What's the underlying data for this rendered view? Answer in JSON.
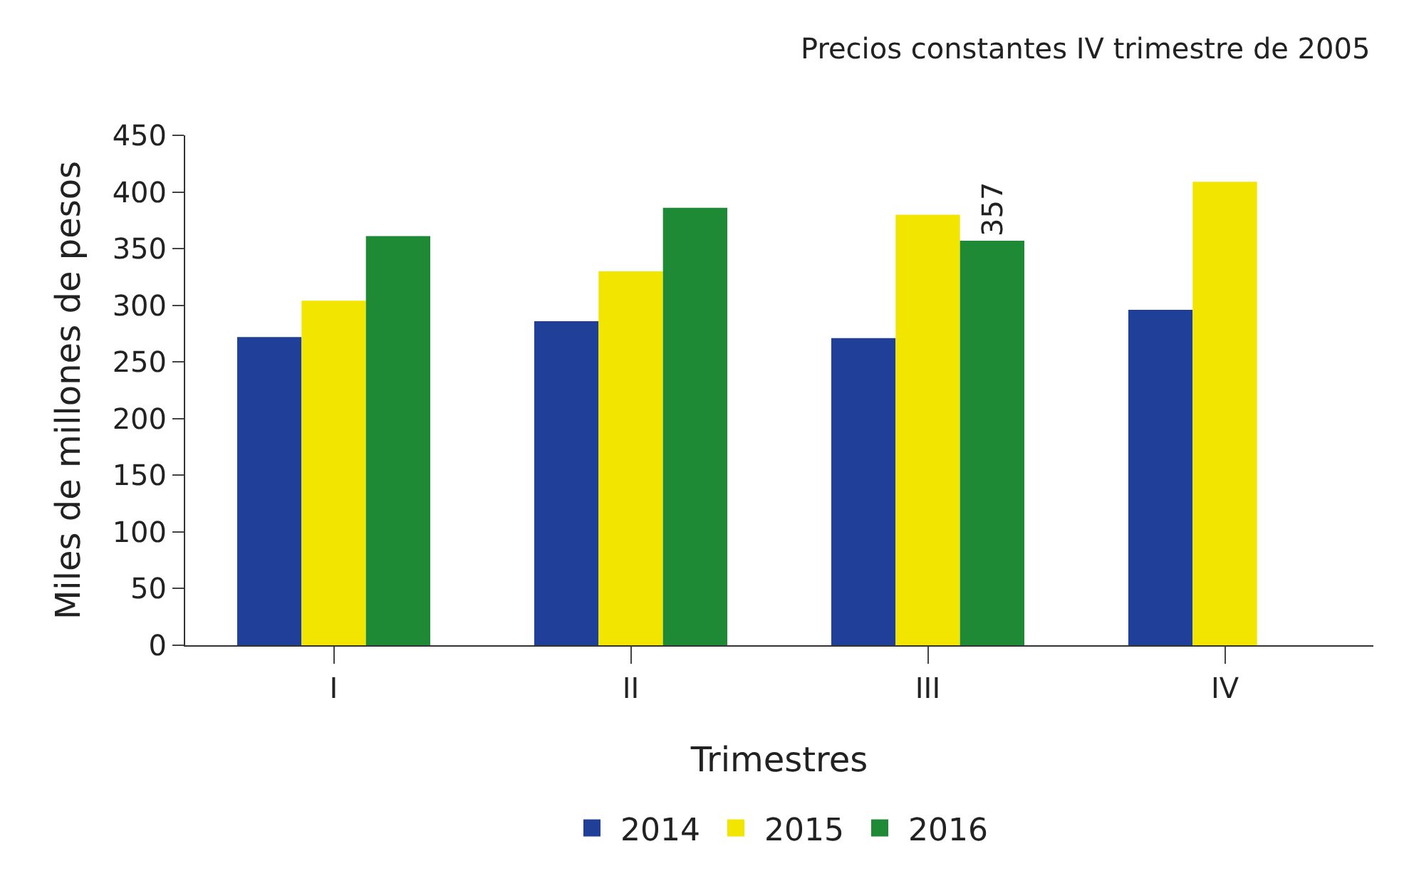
{
  "chart_data": {
    "type": "bar",
    "subtitle": "Precios constantes IV trimestre de 2005",
    "xlabel": "Trimestres",
    "ylabel": "Miles de millones de pesos",
    "categories": [
      "I",
      "II",
      "III",
      "IV"
    ],
    "series": [
      {
        "name": "2014",
        "color": "#1f3f99",
        "values": [
          272,
          286,
          271,
          296
        ]
      },
      {
        "name": "2015",
        "color": "#f2e600",
        "values": [
          304,
          330,
          380,
          409
        ]
      },
      {
        "name": "2016",
        "color": "#1f8a35",
        "values": [
          361,
          386,
          357,
          null
        ],
        "value_labels": [
          null,
          null,
          "357",
          null
        ]
      }
    ],
    "ylim": [
      0,
      450
    ],
    "yticks": [
      0,
      50,
      100,
      150,
      200,
      250,
      300,
      350,
      400,
      450
    ],
    "legend": "bottom"
  }
}
